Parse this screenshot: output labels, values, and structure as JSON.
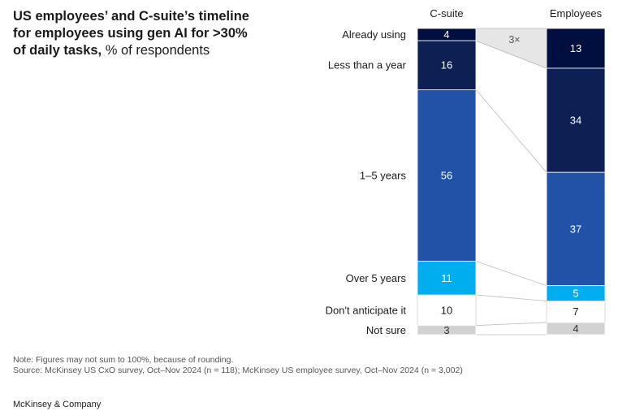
{
  "title": {
    "bold": "US employees’ and C-suite’s timeline for employees using gen AI for >30% of daily tasks,",
    "unit": "% of respondents"
  },
  "chart_data": {
    "type": "bar",
    "stacked": true,
    "orientation": "vertical",
    "categories": [
      "C-suite",
      "Employees"
    ],
    "series": [
      {
        "name": "Already using",
        "values": [
          4,
          13
        ],
        "color": "#000f3f",
        "label_color": "#ffffff"
      },
      {
        "name": "Less than a year",
        "values": [
          16,
          34
        ],
        "color": "#0e1f54",
        "label_color": "#ffffff"
      },
      {
        "name": "1–5 years",
        "values": [
          56,
          37
        ],
        "color": "#2251a8",
        "label_color": "#ffffff"
      },
      {
        "name": "Over 5 years",
        "values": [
          11,
          5
        ],
        "color": "#00aeef",
        "label_color": "#ffffff"
      },
      {
        "name": "Don't anticipate it",
        "values": [
          10,
          7
        ],
        "color": "#ffffff",
        "label_color": "#1a1a1a"
      },
      {
        "name": "Not sure",
        "values": [
          3,
          4
        ],
        "color": "#d2d2d2",
        "label_color": "#333333"
      }
    ],
    "annotations": [
      {
        "text": "3×",
        "between": "Already using"
      }
    ],
    "ylim": [
      0,
      100
    ]
  },
  "footer": {
    "note": "Note: Figures may not sum to 100%, because of rounding.",
    "source": "Source: McKinsey US CxO survey, Oct–Nov 2024 (n = 118); McKinsey US employee survey, Oct–Nov 2024 (n = 3,002)",
    "brand": "McKinsey & Company"
  }
}
